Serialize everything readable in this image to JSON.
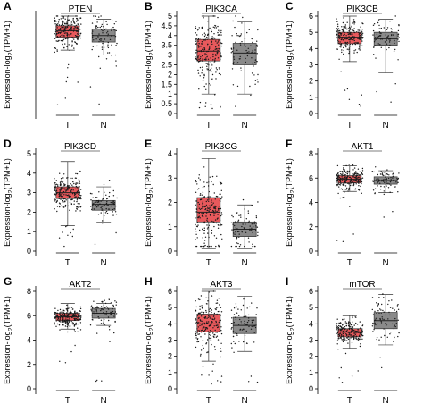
{
  "figure": {
    "y_axis_label": "Expression-log",
    "y_axis_label_sub": "2",
    "y_axis_label_tail": "(TPM+1)"
  },
  "colors": {
    "tumor_box": "#e8595c",
    "normal_box": "#8a8a8a",
    "points": "#1a1a1a"
  },
  "chart_data": [
    {
      "panel": "A",
      "title": "PTEN",
      "type": "box",
      "ylim": [
        0,
        6
      ],
      "yticks": [
        0,
        1,
        2,
        3,
        4,
        5,
        6
      ],
      "yticks_shown": false,
      "categories": [
        "T",
        "N"
      ],
      "series": [
        {
          "category": "T",
          "q1": 4.7,
          "median": 5.1,
          "q3": 5.4,
          "whisker_low": 3.9,
          "whisker_high": 6.0,
          "n_points": 220
        },
        {
          "category": "N",
          "q1": 4.4,
          "median": 4.8,
          "q3": 5.2,
          "whisker_low": 3.6,
          "whisker_high": 5.8,
          "n_points": 80
        }
      ]
    },
    {
      "panel": "B",
      "title": "PIK3CA",
      "type": "box",
      "ylim": [
        0,
        5
      ],
      "yticks": [
        0,
        0.5,
        1,
        1.5,
        2,
        2.5,
        3,
        3.5,
        4,
        4.5,
        5
      ],
      "yticks_shown": true,
      "categories": [
        "T",
        "N"
      ],
      "series": [
        {
          "category": "T",
          "q1": 2.7,
          "median": 3.2,
          "q3": 3.8,
          "whisker_low": 1.0,
          "whisker_high": 5.0,
          "n_points": 220
        },
        {
          "category": "N",
          "q1": 2.5,
          "median": 3.1,
          "q3": 3.6,
          "whisker_low": 1.0,
          "whisker_high": 4.7,
          "n_points": 80
        }
      ]
    },
    {
      "panel": "C",
      "title": "PIK3CB",
      "type": "box",
      "ylim": [
        0,
        6
      ],
      "yticks": [
        0,
        1,
        2,
        3,
        4,
        5,
        6
      ],
      "yticks_shown": true,
      "categories": [
        "T",
        "N"
      ],
      "series": [
        {
          "category": "T",
          "q1": 4.3,
          "median": 4.7,
          "q3": 5.0,
          "whisker_low": 3.2,
          "whisker_high": 6.0,
          "n_points": 220
        },
        {
          "category": "N",
          "q1": 4.2,
          "median": 4.6,
          "q3": 5.0,
          "whisker_low": 2.5,
          "whisker_high": 5.8,
          "n_points": 80
        }
      ]
    },
    {
      "panel": "D",
      "title": "PIK3CD",
      "type": "box",
      "ylim": [
        0,
        5
      ],
      "yticks": [
        0,
        1,
        2,
        3,
        4,
        5
      ],
      "yticks_shown": true,
      "categories": [
        "T",
        "N"
      ],
      "series": [
        {
          "category": "T",
          "q1": 2.7,
          "median": 3.0,
          "q3": 3.3,
          "whisker_low": 1.3,
          "whisker_high": 4.6,
          "n_points": 220
        },
        {
          "category": "N",
          "q1": 2.1,
          "median": 2.4,
          "q3": 2.6,
          "whisker_low": 1.5,
          "whisker_high": 3.3,
          "n_points": 80
        }
      ]
    },
    {
      "panel": "E",
      "title": "PIK3CG",
      "type": "box",
      "ylim": [
        0,
        4
      ],
      "yticks": [
        0,
        1,
        2,
        3,
        4
      ],
      "yticks_shown": true,
      "categories": [
        "T",
        "N"
      ],
      "series": [
        {
          "category": "T",
          "q1": 1.2,
          "median": 1.6,
          "q3": 2.2,
          "whisker_low": 0.1,
          "whisker_high": 3.8,
          "n_points": 220
        },
        {
          "category": "N",
          "q1": 0.6,
          "median": 0.9,
          "q3": 1.2,
          "whisker_low": 0.1,
          "whisker_high": 1.9,
          "n_points": 80
        }
      ]
    },
    {
      "panel": "F",
      "title": "AKT1",
      "type": "box",
      "ylim": [
        0,
        8
      ],
      "yticks": [
        0,
        2,
        4,
        6,
        8
      ],
      "yticks_shown": true,
      "categories": [
        "T",
        "N"
      ],
      "series": [
        {
          "category": "T",
          "q1": 5.6,
          "median": 5.9,
          "q3": 6.2,
          "whisker_low": 4.9,
          "whisker_high": 7.0,
          "n_points": 220
        },
        {
          "category": "N",
          "q1": 5.5,
          "median": 5.8,
          "q3": 6.1,
          "whisker_low": 4.8,
          "whisker_high": 6.6,
          "n_points": 80
        }
      ]
    },
    {
      "panel": "G",
      "title": "AKT2",
      "type": "box",
      "ylim": [
        0,
        8
      ],
      "yticks": [
        0,
        2,
        4,
        6,
        8
      ],
      "yticks_shown": true,
      "categories": [
        "T",
        "N"
      ],
      "series": [
        {
          "category": "T",
          "q1": 5.6,
          "median": 5.9,
          "q3": 6.2,
          "whisker_low": 4.9,
          "whisker_high": 7.0,
          "n_points": 220
        },
        {
          "category": "N",
          "q1": 5.8,
          "median": 6.2,
          "q3": 6.6,
          "whisker_low": 5.2,
          "whisker_high": 7.0,
          "n_points": 80
        }
      ]
    },
    {
      "panel": "H",
      "title": "AKT3",
      "type": "box",
      "ylim": [
        0,
        6
      ],
      "yticks": [
        0,
        1,
        2,
        3,
        4,
        5,
        6
      ],
      "yticks_shown": true,
      "categories": [
        "T",
        "N"
      ],
      "series": [
        {
          "category": "T",
          "q1": 3.5,
          "median": 4.0,
          "q3": 4.6,
          "whisker_low": 1.7,
          "whisker_high": 6.0,
          "n_points": 220
        },
        {
          "category": "N",
          "q1": 3.4,
          "median": 3.9,
          "q3": 4.4,
          "whisker_low": 2.3,
          "whisker_high": 5.7,
          "n_points": 80
        }
      ]
    },
    {
      "panel": "I",
      "title": "mTOR",
      "type": "box",
      "ylim": [
        0,
        6
      ],
      "yticks": [
        0,
        1,
        2,
        3,
        4,
        5,
        6
      ],
      "yticks_shown": true,
      "categories": [
        "T",
        "N"
      ],
      "series": [
        {
          "category": "T",
          "q1": 3.2,
          "median": 3.5,
          "q3": 3.7,
          "whisker_low": 2.5,
          "whisker_high": 4.5,
          "n_points": 220
        },
        {
          "category": "N",
          "q1": 3.7,
          "median": 4.2,
          "q3": 4.7,
          "whisker_low": 2.7,
          "whisker_high": 5.8,
          "n_points": 80
        }
      ]
    }
  ]
}
